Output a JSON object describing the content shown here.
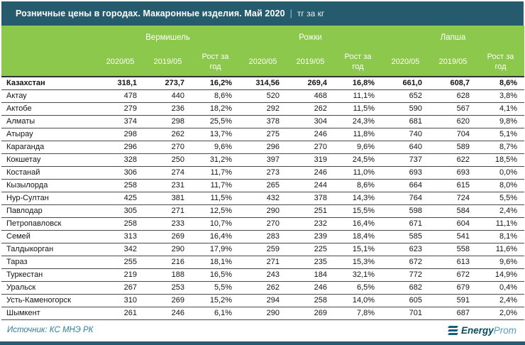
{
  "title": {
    "main": "Розничные цены в городах. Макаронные изделия. Май 2020",
    "separator": "|",
    "unit": "тг за кг"
  },
  "chart_data": {
    "type": "table",
    "title": "Розничные цены в городах. Макаронные изделия. Май 2020",
    "unit": "тг за кг",
    "column_groups": [
      "Вермишель",
      "Рожки",
      "Лапша"
    ],
    "col_headers": [
      "2020/05",
      "2019/05",
      "Рост за год",
      "2020/05",
      "2019/05",
      "Рост за год",
      "2020/05",
      "2019/05",
      "Рост за год"
    ],
    "rows": [
      {
        "name": "Казахстан",
        "bold": true,
        "values": [
          "318,1",
          "273,7",
          "16,2%",
          "314,56",
          "269,4",
          "16,8%",
          "661,0",
          "608,7",
          "8,6%"
        ]
      },
      {
        "name": "Актау",
        "values": [
          "478",
          "440",
          "8,6%",
          "520",
          "468",
          "11,1%",
          "652",
          "628",
          "3,8%"
        ]
      },
      {
        "name": "Актобе",
        "values": [
          "279",
          "236",
          "18,2%",
          "292",
          "262",
          "11,5%",
          "590",
          "567",
          "4,1%"
        ]
      },
      {
        "name": "Алматы",
        "values": [
          "374",
          "298",
          "25,5%",
          "378",
          "304",
          "24,3%",
          "681",
          "620",
          "9,8%"
        ]
      },
      {
        "name": "Атырау",
        "values": [
          "298",
          "262",
          "13,7%",
          "275",
          "246",
          "11,8%",
          "740",
          "704",
          "5,1%"
        ]
      },
      {
        "name": "Караганда",
        "values": [
          "296",
          "270",
          "9,6%",
          "296",
          "270",
          "9,6%",
          "640",
          "589",
          "8,7%"
        ]
      },
      {
        "name": "Кокшетау",
        "values": [
          "328",
          "250",
          "31,2%",
          "397",
          "319",
          "24,5%",
          "737",
          "622",
          "18,5%"
        ]
      },
      {
        "name": "Костанай",
        "values": [
          "306",
          "274",
          "11,7%",
          "273",
          "246",
          "11,0%",
          "693",
          "693",
          "0,0%"
        ]
      },
      {
        "name": "Кызылорда",
        "values": [
          "258",
          "231",
          "11,7%",
          "265",
          "244",
          "8,6%",
          "664",
          "615",
          "8,0%"
        ]
      },
      {
        "name": "Нур-Султан",
        "values": [
          "425",
          "381",
          "11,5%",
          "432",
          "378",
          "14,3%",
          "764",
          "724",
          "5,5%"
        ]
      },
      {
        "name": "Павлодар",
        "values": [
          "305",
          "271",
          "12,5%",
          "290",
          "251",
          "15,5%",
          "598",
          "584",
          "2,4%"
        ]
      },
      {
        "name": "Петропавловск",
        "values": [
          "258",
          "233",
          "10,7%",
          "270",
          "232",
          "16,4%",
          "671",
          "604",
          "11,1%"
        ]
      },
      {
        "name": "Семей",
        "values": [
          "313",
          "269",
          "16,4%",
          "283",
          "239",
          "18,4%",
          "585",
          "541",
          "8,1%"
        ]
      },
      {
        "name": "Талдыкорган",
        "values": [
          "342",
          "290",
          "17,9%",
          "259",
          "225",
          "15,1%",
          "623",
          "558",
          "11,6%"
        ]
      },
      {
        "name": "Тараз",
        "values": [
          "255",
          "216",
          "18,1%",
          "271",
          "235",
          "15,3%",
          "672",
          "613",
          "9,6%"
        ]
      },
      {
        "name": "Туркестан",
        "values": [
          "219",
          "188",
          "16,5%",
          "243",
          "184",
          "32,1%",
          "772",
          "672",
          "14,9%"
        ]
      },
      {
        "name": "Уральск",
        "values": [
          "267",
          "253",
          "5,5%",
          "262",
          "246",
          "6,5%",
          "682",
          "679",
          "0,4%"
        ]
      },
      {
        "name": "Усть-Каменогорск",
        "values": [
          "310",
          "269",
          "15,2%",
          "294",
          "258",
          "14,0%",
          "605",
          "591",
          "2,4%"
        ]
      },
      {
        "name": "Шымкент",
        "values": [
          "261",
          "246",
          "6,1%",
          "290",
          "269",
          "7,8%",
          "701",
          "687",
          "2,0%"
        ]
      }
    ]
  },
  "footer": {
    "source": "Источник: КС МНЭ РК",
    "logo_bold": "Energy",
    "logo_light": "Prom"
  },
  "colors": {
    "header_teal": "#265b6d",
    "header_green": "#8bc84b",
    "row_line": "#4a4a4a",
    "source_text": "#2f7e9b",
    "logo_dark": "#0d4b61",
    "logo_light": "#569ebb"
  }
}
